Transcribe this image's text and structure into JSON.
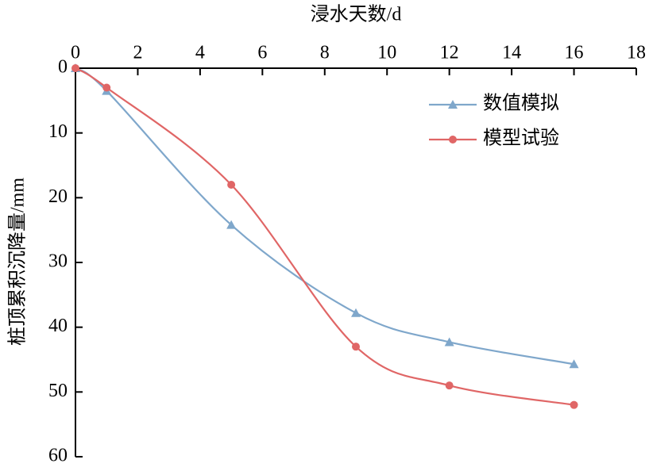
{
  "chart_data": {
    "type": "line",
    "x_title": "浸水天数/d",
    "y_title": "桩顶累积沉降量/mm",
    "x_axis_position": "top",
    "y_inverted": true,
    "xlim": [
      0,
      18
    ],
    "xticks": [
      0,
      2,
      4,
      6,
      8,
      10,
      12,
      14,
      16,
      18
    ],
    "ylim": [
      0,
      60
    ],
    "yticks": [
      0,
      10,
      20,
      30,
      40,
      50,
      60
    ],
    "legend": "upper right",
    "series": [
      {
        "name": "数值模拟",
        "color": "#7fa7cb",
        "marker": "triangle",
        "x": [
          0,
          1,
          5,
          9,
          12,
          16
        ],
        "values": [
          0,
          3.5,
          24.2,
          37.8,
          42.3,
          45.7
        ]
      },
      {
        "name": "模型试验",
        "color": "#e06666",
        "marker": "circle",
        "x": [
          0,
          1,
          5,
          9,
          12,
          16
        ],
        "values": [
          0,
          3,
          18,
          43,
          49,
          52
        ]
      }
    ]
  }
}
